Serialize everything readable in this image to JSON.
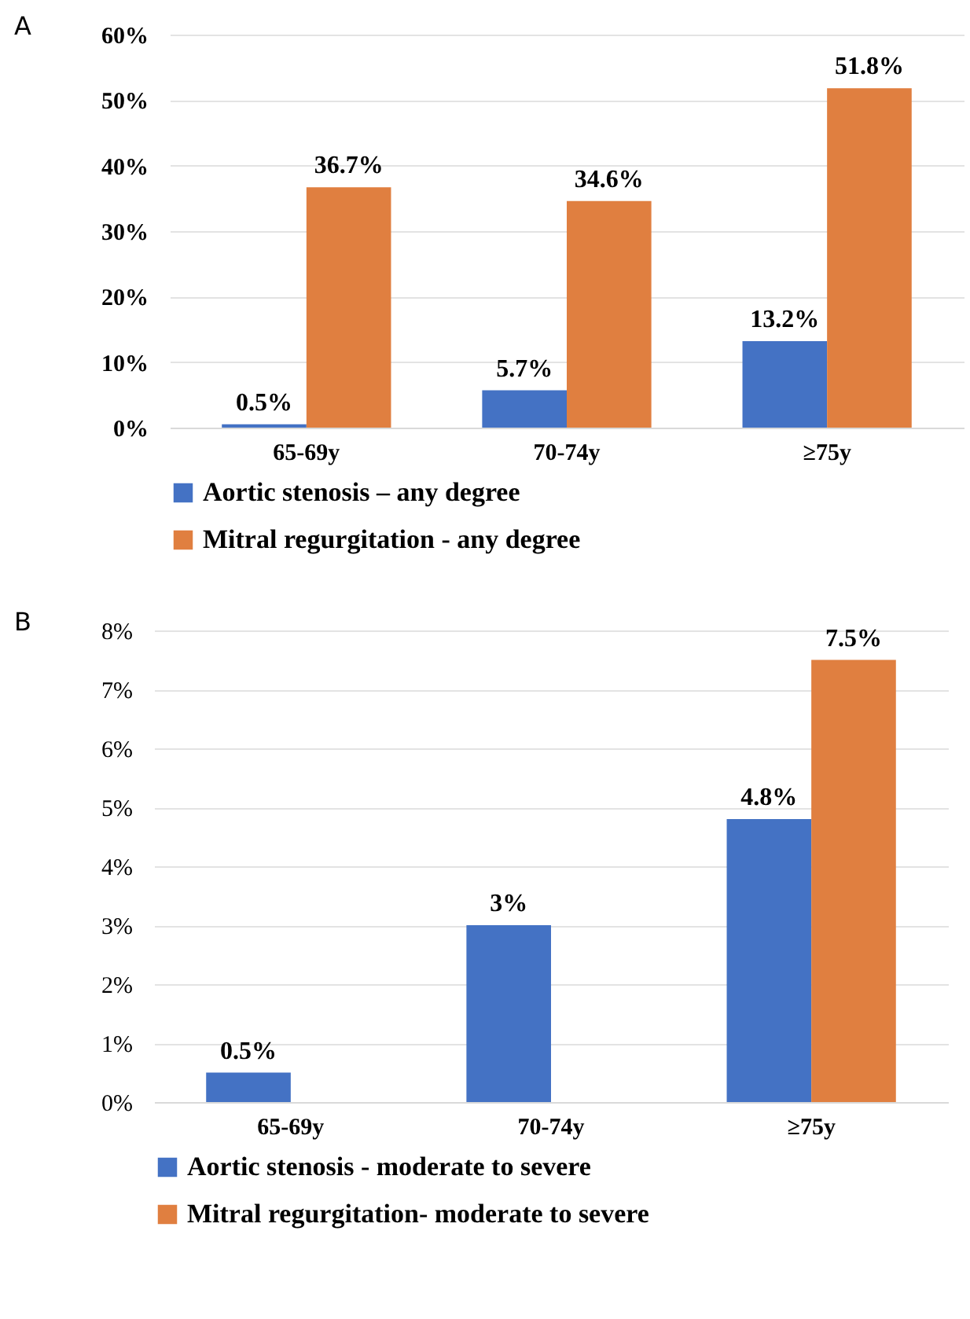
{
  "chart_data": [
    {
      "type": "bar",
      "title": "A",
      "categories": [
        "65-69y",
        "70-74y",
        "≥75y"
      ],
      "series": [
        {
          "name": "Aortic stenosis – any degree",
          "color": "#4472c4",
          "values": [
            0.5,
            5.7,
            13.2
          ],
          "value_labels": [
            "0.5%",
            "5.7%",
            "13.2%"
          ]
        },
        {
          "name": "Mitral regurgitation - any degree",
          "color": "#e07f40",
          "values": [
            36.7,
            34.6,
            51.8
          ],
          "value_labels": [
            "36.7%",
            "34.6%",
            "51.8%"
          ]
        }
      ],
      "ylim": [
        0,
        60
      ],
      "yticks": [
        {
          "value": 0,
          "label": "0%"
        },
        {
          "value": 10,
          "label": "10%"
        },
        {
          "value": 20,
          "label": "20%"
        },
        {
          "value": 30,
          "label": "30%"
        },
        {
          "value": 40,
          "label": "40%"
        },
        {
          "value": 50,
          "label": "50%"
        },
        {
          "value": 60,
          "label": "60%"
        }
      ],
      "grid": "y",
      "legend": "bottom"
    },
    {
      "type": "bar",
      "title": "B",
      "categories": [
        "65-69y",
        "70-74y",
        "≥75y"
      ],
      "series": [
        {
          "name": "Aortic stenosis - moderate to severe",
          "color": "#4472c4",
          "values": [
            0.5,
            3,
            4.8
          ],
          "value_labels": [
            "0.5%",
            "3%",
            "4.8%"
          ]
        },
        {
          "name": "Mitral regurgitation- moderate to severe",
          "color": "#e07f40",
          "values": [
            null,
            null,
            7.5
          ],
          "value_labels": [
            null,
            null,
            "7.5%"
          ]
        }
      ],
      "ylim": [
        0,
        8
      ],
      "yticks": [
        {
          "value": 0,
          "label": "0%"
        },
        {
          "value": 1,
          "label": "1%"
        },
        {
          "value": 2,
          "label": "2%"
        },
        {
          "value": 3,
          "label": "3%"
        },
        {
          "value": 4,
          "label": "4%"
        },
        {
          "value": 5,
          "label": "5%"
        },
        {
          "value": 6,
          "label": "6%"
        },
        {
          "value": 7,
          "label": "7%"
        },
        {
          "value": 8,
          "label": "8%"
        }
      ],
      "grid": "y",
      "legend": "bottom"
    }
  ]
}
